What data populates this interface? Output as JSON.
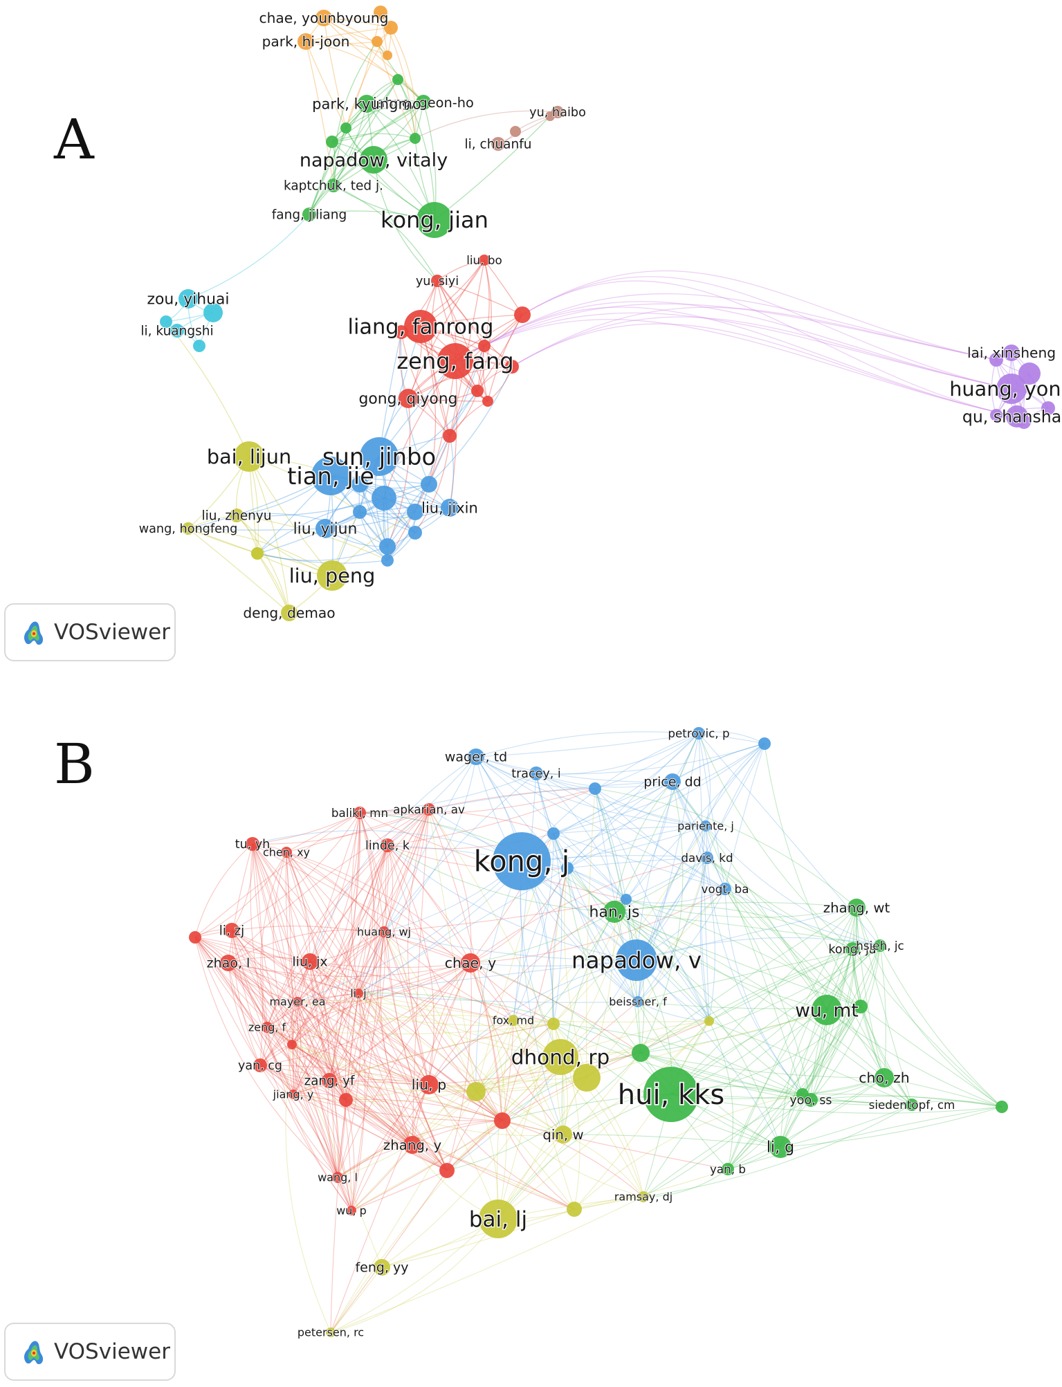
{
  "panels": [
    {
      "letter": "A",
      "badge_text": "VOSviewer",
      "clusters": {
        "red": "#e8453c",
        "green": "#3cb648",
        "blue": "#4b9be0",
        "yellow": "#c7c83a",
        "cyan": "#3fc6dc",
        "purple": "#b07fe5",
        "orange": "#f2a23c",
        "brown": "#c48a7c"
      },
      "nodes": [
        {
          "label": "chae, younbyoung",
          "c": "orange",
          "r": 12
        },
        {
          "label": "park, hi-joon",
          "c": "orange",
          "r": 12
        },
        {
          "label": "jahng, geon-ho",
          "c": "green",
          "r": 11
        },
        {
          "label": "park, kyungmo",
          "c": "green",
          "r": 13
        },
        {
          "label": "napadow, vitaly",
          "c": "green",
          "r": 20
        },
        {
          "label": "kaptchuk, ted j.",
          "c": "green",
          "r": 10
        },
        {
          "label": "fang, jiliang",
          "c": "green",
          "r": 10
        },
        {
          "label": "kong, jian",
          "c": "green",
          "r": 26
        },
        {
          "label": "yu, haibo",
          "c": "brown",
          "r": 9
        },
        {
          "label": "li, chuanfu",
          "c": "brown",
          "r": 10
        },
        {
          "label": "liu, bo",
          "c": "red",
          "r": 8
        },
        {
          "label": "yu, siyi",
          "c": "red",
          "r": 9
        },
        {
          "label": "liang, fanrong",
          "c": "red",
          "r": 24
        },
        {
          "label": "zeng, fang",
          "c": "red",
          "r": 26
        },
        {
          "label": "gong, qiyong",
          "c": "red",
          "r": 14
        },
        {
          "label": "zou, yihuai",
          "c": "cyan",
          "r": 14
        },
        {
          "label": "li, kuangshi",
          "c": "cyan",
          "r": 10
        },
        {
          "label": "lai, xinsheng",
          "c": "purple",
          "r": 12
        },
        {
          "label": "huang, yong",
          "c": "purple",
          "r": 22
        },
        {
          "label": "qu, shanshan",
          "c": "purple",
          "r": 16
        },
        {
          "label": "bai, lijun",
          "c": "yellow",
          "r": 22
        },
        {
          "label": "tian, jie",
          "c": "blue",
          "r": 28
        },
        {
          "label": "sun, jinbo",
          "c": "blue",
          "r": 28
        },
        {
          "label": "liu, jixin",
          "c": "blue",
          "r": 13
        },
        {
          "label": "liu, zhenyu",
          "c": "yellow",
          "r": 10
        },
        {
          "label": "wang, hongfeng",
          "c": "yellow",
          "r": 9
        },
        {
          "label": "liu, yijun",
          "c": "blue",
          "r": 14
        },
        {
          "label": "liu, peng",
          "c": "yellow",
          "r": 22
        },
        {
          "label": "deng, demao",
          "c": "yellow",
          "r": 12
        }
      ]
    },
    {
      "letter": "B",
      "badge_text": "VOSviewer",
      "clusters": {
        "red": "#e8453c",
        "green": "#3cb648",
        "blue": "#4b9be0",
        "yellow": "#c7c83a"
      },
      "nodes": [
        {
          "label": "petrovic, p",
          "c": "blue",
          "r": 9
        },
        {
          "label": "wager, td",
          "c": "blue",
          "r": 12
        },
        {
          "label": "tracey, i",
          "c": "blue",
          "r": 10
        },
        {
          "label": "price, dd",
          "c": "blue",
          "r": 12
        },
        {
          "label": "baliki, mn",
          "c": "red",
          "r": 9
        },
        {
          "label": "apkarian, av",
          "c": "red",
          "r": 9
        },
        {
          "label": "pariente, j",
          "c": "blue",
          "r": 8
        },
        {
          "label": "tu, yh",
          "c": "red",
          "r": 10
        },
        {
          "label": "linde, k",
          "c": "red",
          "r": 10
        },
        {
          "label": "kong, j",
          "c": "blue",
          "r": 42
        },
        {
          "label": "davis, kd",
          "c": "blue",
          "r": 9
        },
        {
          "label": "chen, xy",
          "c": "red",
          "r": 8
        },
        {
          "label": "vogt, ba",
          "c": "blue",
          "r": 9
        },
        {
          "label": "zhang, wt",
          "c": "green",
          "r": 13
        },
        {
          "label": "han, js",
          "c": "green",
          "r": 16
        },
        {
          "label": "li, zj",
          "c": "red",
          "r": 11
        },
        {
          "label": "huang, wj",
          "c": "red",
          "r": 8
        },
        {
          "label": "kong, ja",
          "c": "green",
          "r": 10
        },
        {
          "label": "hsieh, jc",
          "c": "green",
          "r": 9
        },
        {
          "label": "zhao, l",
          "c": "red",
          "r": 12
        },
        {
          "label": "liu, jx",
          "c": "red",
          "r": 12
        },
        {
          "label": "chae, y",
          "c": "red",
          "r": 14
        },
        {
          "label": "napadow, v",
          "c": "blue",
          "r": 30
        },
        {
          "label": "li, j",
          "c": "red",
          "r": 7
        },
        {
          "label": "mayer, ea",
          "c": "red",
          "r": 7
        },
        {
          "label": "beissner, f",
          "c": "blue",
          "r": 8
        },
        {
          "label": "wu, mt",
          "c": "green",
          "r": 22
        },
        {
          "label": "fox, md",
          "c": "yellow",
          "r": 8
        },
        {
          "label": "zeng, f",
          "c": "red",
          "r": 8
        },
        {
          "label": "dhond, rp",
          "c": "yellow",
          "r": 26
        },
        {
          "label": "yan, cg",
          "c": "red",
          "r": 10
        },
        {
          "label": "zang, yf",
          "c": "red",
          "r": 11
        },
        {
          "label": "cho, zh",
          "c": "green",
          "r": 14
        },
        {
          "label": "jiang, y",
          "c": "red",
          "r": 7
        },
        {
          "label": "liu, p",
          "c": "red",
          "r": 14
        },
        {
          "label": "hui, kks",
          "c": "green",
          "r": 40
        },
        {
          "label": "yoo, ss",
          "c": "green",
          "r": 10
        },
        {
          "label": "siedentopf, cm",
          "c": "green",
          "r": 9
        },
        {
          "label": "qin, w",
          "c": "yellow",
          "r": 13
        },
        {
          "label": "zhang, y",
          "c": "red",
          "r": 13
        },
        {
          "label": "li, g",
          "c": "green",
          "r": 16
        },
        {
          "label": "yan, b",
          "c": "green",
          "r": 9
        },
        {
          "label": "wang, l",
          "c": "red",
          "r": 8
        },
        {
          "label": "ramsay, dj",
          "c": "yellow",
          "r": 8
        },
        {
          "label": "bai, lj",
          "c": "yellow",
          "r": 28
        },
        {
          "label": "wu, p",
          "c": "red",
          "r": 7
        },
        {
          "label": "feng, yy",
          "c": "yellow",
          "r": 12
        },
        {
          "label": "petersen, rc",
          "c": "yellow",
          "r": 7
        }
      ]
    }
  ]
}
